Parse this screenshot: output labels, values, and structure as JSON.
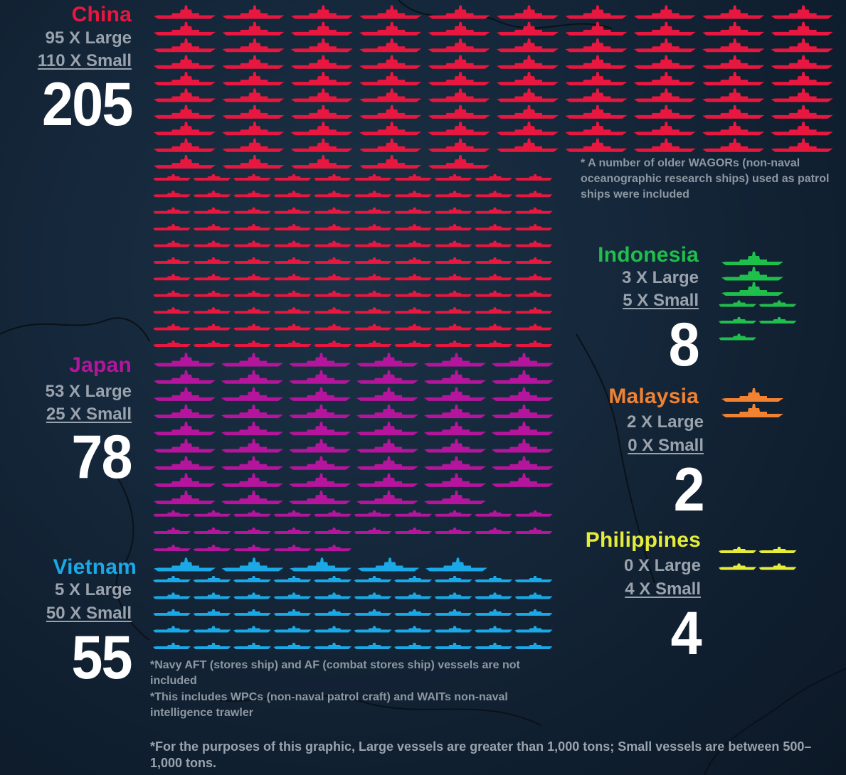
{
  "colors": {
    "China": "#e8173f",
    "Japan": "#b5159c",
    "Vietnam": "#1aa9e6",
    "Indonesia": "#1fbf4c",
    "Malaysia": "#f08232",
    "Philippines": "#e6ec3a",
    "muted_text": "#9aa3ad"
  },
  "icons": {
    "large_vessel": "large-ship-icon",
    "small_vessel": "small-ship-icon"
  },
  "chart_data": {
    "type": "pictogram",
    "series": [
      {
        "name": "China",
        "label": "China",
        "large": 95,
        "small": 110,
        "total": 205,
        "large_text": "95 X Large",
        "small_text": "110 X Small",
        "total_text": "205"
      },
      {
        "name": "Japan",
        "label": "Japan",
        "large": 53,
        "small": 25,
        "total": 78,
        "large_text": "53 X Large",
        "small_text": "25 X Small",
        "total_text": "78"
      },
      {
        "name": "Vietnam",
        "label": "Vietnam",
        "large": 5,
        "small": 50,
        "total": 55,
        "large_text": "5 X Large",
        "small_text": "50 X Small",
        "total_text": "55"
      },
      {
        "name": "Indonesia",
        "label": "Indonesia",
        "large": 3,
        "small": 5,
        "total": 8,
        "large_text": "3 X Large",
        "small_text": "5 X Small",
        "total_text": "8"
      },
      {
        "name": "Malaysia",
        "label": "Malaysia",
        "large": 2,
        "small": 0,
        "total": 2,
        "large_text": "2 X Large",
        "small_text": "0 X Small",
        "total_text": "2"
      },
      {
        "name": "Philippines",
        "label": "Philippines",
        "large": 0,
        "small": 4,
        "total": 4,
        "large_text": "0 X Large",
        "small_text": "4 X Small",
        "total_text": "4"
      }
    ]
  },
  "notes": {
    "china_note": "* A number of older WAGORs (non-naval oceanographic research ships) used as patrol ships were included",
    "japan_note_1": "*Navy AFT (stores ship) and AF (combat stores ship) vessels are not included",
    "japan_note_2": "*This includes WPCs (non-naval patrol craft) and WAITs non-naval intelligence trawler",
    "size_note": "*For the purposes of this graphic, Large vessels are greater than 1,000 tons; Small vessels are between 500–1,000 tons."
  }
}
